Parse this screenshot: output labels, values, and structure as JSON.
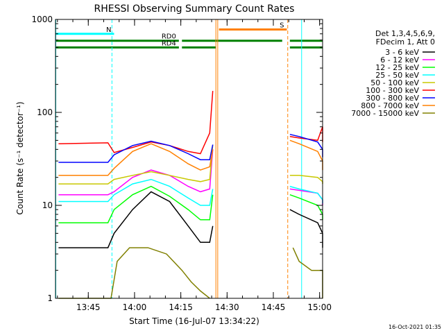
{
  "chart_data": {
    "type": "line",
    "title": "RHESSI Observing Summary Count Rates",
    "ylabel": "Count Rate (s⁻¹ detector⁻¹)",
    "xlabel": "Start Time (16-Jul-07 13:34:22)",
    "y_scale": "log",
    "ylim": [
      1,
      1000
    ],
    "y_ticks": [
      {
        "value": 1,
        "label": "1"
      },
      {
        "value": 10,
        "label": "10"
      },
      {
        "value": 100,
        "label": "100"
      },
      {
        "value": 1000,
        "label": "1000"
      }
    ],
    "x_unit": "minutes after 13:34:22",
    "xlim": [
      0,
      86.6
    ],
    "x_ticks": [
      {
        "value": 10.63,
        "label": "13:45"
      },
      {
        "value": 25.63,
        "label": "14:00"
      },
      {
        "value": 40.63,
        "label": "14:15"
      },
      {
        "value": 55.63,
        "label": "14:30"
      },
      {
        "value": 70.63,
        "label": "14:45"
      },
      {
        "value": 85.63,
        "label": "15:00"
      }
    ],
    "legend_header": [
      "Det 1,3,4,5,6,9,",
      "FDecim 1, Att 0"
    ],
    "legend_placement": "right",
    "timestamp": "16-Oct-2021 01:35",
    "flags": [
      {
        "label": "N",
        "color": "#00ffff",
        "y": 700,
        "segments": [
          [
            0,
            19
          ],
          [
            92,
            104
          ]
        ]
      },
      {
        "label": "RD0",
        "color": "#008000",
        "y": 590,
        "segments": [
          [
            0,
            40
          ],
          [
            41,
            73.5
          ],
          [
            76,
            87
          ],
          [
            90,
            104
          ]
        ]
      },
      {
        "label": "RD4",
        "color": "#008000",
        "y": 500,
        "segments": [
          [
            0,
            40
          ],
          [
            41,
            52
          ],
          [
            76,
            87
          ]
        ]
      },
      {
        "label": "S",
        "color": "#ff8000",
        "y": 780,
        "segments": [
          [
            53,
            75
          ]
        ]
      }
    ],
    "vlines": [
      {
        "x": 0.1,
        "color": "#00ffff",
        "style": "solid"
      },
      {
        "x": 18.3,
        "color": "#00ffff",
        "style": "dashed"
      },
      {
        "x": 52.0,
        "color": "#ff8000",
        "style": "solid"
      },
      {
        "x": 52.6,
        "color": "#ff8000",
        "style": "solid"
      },
      {
        "x": 75.3,
        "color": "#ff8000",
        "style": "dashed"
      },
      {
        "x": 79.8,
        "color": "#00ffff",
        "style": "solid"
      },
      {
        "x": 95.6,
        "color": "#00ffff",
        "style": "dashed"
      }
    ],
    "gap": [
      52.6,
      74.4
    ],
    "series": [
      {
        "name": "3 - 6 keV",
        "color": "#000000",
        "x": [
          1,
          17,
          19,
          25,
          31,
          37,
          43,
          47,
          50,
          51,
          76,
          79,
          85,
          91,
          93,
          95
        ],
        "y": [
          3.5,
          3.5,
          5,
          9,
          14,
          11,
          6,
          4,
          4,
          6,
          9,
          8,
          6.5,
          5,
          4,
          3.5
        ]
      },
      {
        "name": "6 - 12 keV",
        "color": "#ff00ff",
        "x": [
          1,
          17,
          19,
          25,
          31,
          37,
          43,
          47,
          50,
          51,
          76,
          79,
          85,
          91,
          93,
          95
        ],
        "y": [
          13,
          13,
          14,
          20,
          24,
          21,
          16,
          14,
          15,
          40,
          15,
          14.5,
          13.5,
          11.5,
          10.5,
          10
        ]
      },
      {
        "name": "12 - 25 keV",
        "color": "#00ff00",
        "x": [
          1,
          17,
          19,
          25,
          31,
          37,
          43,
          47,
          50,
          51,
          76,
          79,
          85,
          91,
          93,
          95
        ],
        "y": [
          6.5,
          6.5,
          9,
          13,
          16,
          12.5,
          9,
          7,
          7,
          13,
          13,
          12,
          10,
          8,
          7.5,
          7
        ]
      },
      {
        "name": "25 - 50 keV",
        "color": "#00ffff",
        "x": [
          1,
          17,
          19,
          25,
          31,
          37,
          43,
          47,
          50,
          51,
          76,
          79,
          85,
          91,
          93,
          95
        ],
        "y": [
          11,
          11,
          13,
          17,
          19,
          16,
          12,
          10,
          10,
          15,
          16,
          15,
          13.5,
          11.5,
          11,
          10.5
        ]
      },
      {
        "name": "50 - 100 keV",
        "color": "#c8c800",
        "x": [
          1,
          17,
          19,
          25,
          31,
          37,
          43,
          47,
          50,
          51,
          76,
          79,
          85,
          91,
          93,
          95
        ],
        "y": [
          17,
          17,
          19,
          21,
          23,
          21,
          19,
          18,
          19,
          45,
          21,
          21,
          20,
          18,
          17.5,
          17
        ]
      },
      {
        "name": "100 - 300 keV",
        "color": "#ff0000",
        "x": [
          1,
          17,
          19,
          25,
          31,
          37,
          43,
          47,
          50,
          51,
          76,
          79,
          85,
          91,
          93,
          95
        ],
        "y": [
          46,
          47,
          37,
          42,
          48,
          44,
          38,
          36,
          60,
          170,
          55,
          53,
          50,
          70,
          55,
          48
        ]
      },
      {
        "name": "300 - 800 keV",
        "color": "#0000ff",
        "x": [
          1,
          17,
          19,
          25,
          31,
          37,
          43,
          47,
          50,
          51,
          76,
          79,
          85,
          91,
          93,
          95
        ],
        "y": [
          29,
          29,
          35,
          44,
          49,
          44,
          36,
          31,
          31,
          45,
          58,
          55,
          48,
          40,
          36,
          33
        ]
      },
      {
        "name": "800 - 7000 keV",
        "color": "#ff8000",
        "x": [
          1,
          17,
          19,
          25,
          31,
          37,
          43,
          47,
          50,
          51,
          76,
          79,
          85,
          91,
          93,
          95
        ],
        "y": [
          21,
          21,
          25,
          38,
          46,
          38,
          28,
          24,
          26,
          40,
          50,
          46,
          38,
          30,
          27,
          24
        ]
      },
      {
        "name": "7000 - 15000 keV",
        "color": "#808000",
        "x": [
          1,
          18,
          20,
          24,
          30,
          36,
          41,
          44,
          47,
          50,
          77,
          79,
          83,
          87,
          91,
          95
        ],
        "y": [
          1,
          1,
          2.5,
          3.5,
          3.5,
          3,
          2,
          1.5,
          1.2,
          1,
          3.5,
          2.5,
          2,
          2,
          1.5,
          1
        ]
      }
    ]
  }
}
